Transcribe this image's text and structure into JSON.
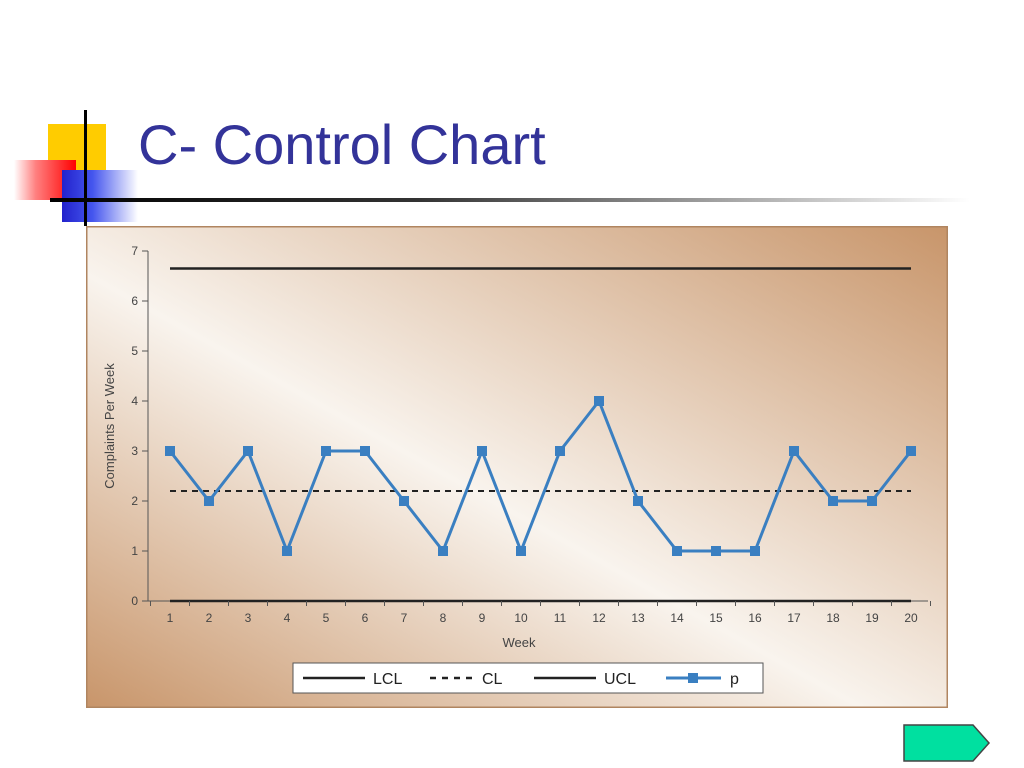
{
  "slide": {
    "title": "C- Control Chart"
  },
  "colors": {
    "title": "#333399",
    "series": "#3a7fc1",
    "panel_light": "#f9f4ee",
    "panel_dark": "#c8956a"
  },
  "nav": {
    "icon": "next-arrow-icon"
  },
  "chart_data": {
    "type": "line",
    "xlabel": "Week",
    "ylabel": "Complaints Per Week",
    "x": [
      1,
      2,
      3,
      4,
      5,
      6,
      7,
      8,
      9,
      10,
      11,
      12,
      13,
      14,
      15,
      16,
      17,
      18,
      19,
      20
    ],
    "ylim": [
      0,
      7
    ],
    "yticks": [
      0,
      1,
      2,
      3,
      4,
      5,
      6,
      7
    ],
    "grid": false,
    "legend_position": "bottom",
    "series": [
      {
        "name": "LCL",
        "style": "solid",
        "values": [
          0,
          0,
          0,
          0,
          0,
          0,
          0,
          0,
          0,
          0,
          0,
          0,
          0,
          0,
          0,
          0,
          0,
          0,
          0,
          0
        ]
      },
      {
        "name": "CL",
        "style": "dashed",
        "values": [
          2.2,
          2.2,
          2.2,
          2.2,
          2.2,
          2.2,
          2.2,
          2.2,
          2.2,
          2.2,
          2.2,
          2.2,
          2.2,
          2.2,
          2.2,
          2.2,
          2.2,
          2.2,
          2.2,
          2.2
        ]
      },
      {
        "name": "UCL",
        "style": "solid",
        "values": [
          6.65,
          6.65,
          6.65,
          6.65,
          6.65,
          6.65,
          6.65,
          6.65,
          6.65,
          6.65,
          6.65,
          6.65,
          6.65,
          6.65,
          6.65,
          6.65,
          6.65,
          6.65,
          6.65,
          6.65
        ]
      },
      {
        "name": "p",
        "style": "marker-line",
        "values": [
          3,
          2,
          3,
          1,
          3,
          3,
          2,
          1,
          3,
          1,
          3,
          4,
          2,
          1,
          1,
          1,
          3,
          2,
          2,
          3
        ]
      }
    ]
  }
}
